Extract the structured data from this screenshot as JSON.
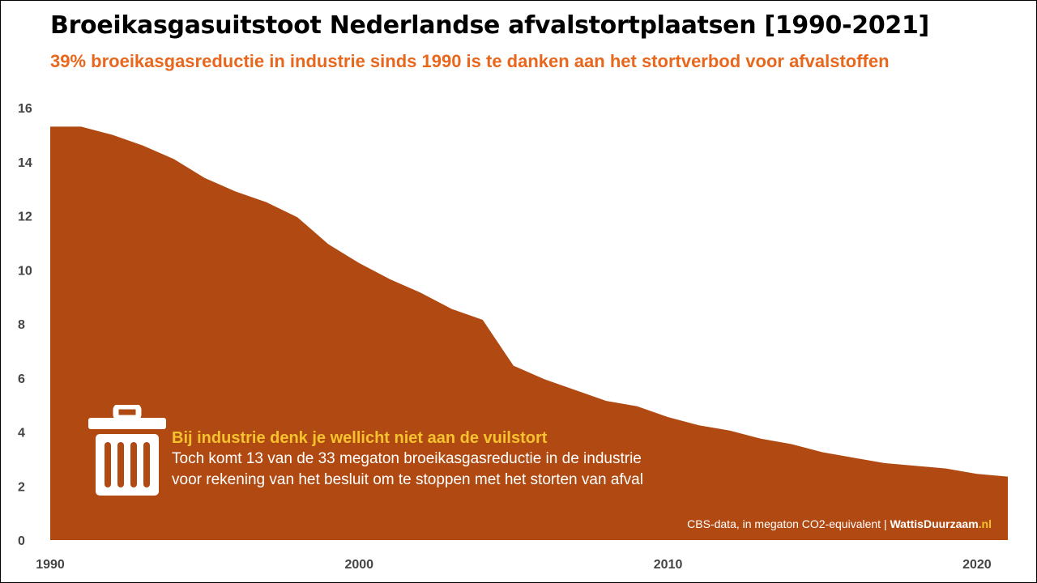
{
  "title": "Broeikasgasuitstoot Nederlandse afvalstortplaatsen [1990-2021]",
  "subtitle": "39% broeikasgasreductie in industrie sinds 1990 is te danken aan het stortverbod voor afvalstoffen",
  "annotation": {
    "heading": "Bij industrie denk je wellicht niet aan de vuilstort",
    "line1": "Toch komt 13 van de 33 megaton broeikasgasreductie in de industrie",
    "line2": "voor rekening van het besluit om te stoppen met het storten van afval",
    "icon": "trash-can-icon"
  },
  "source": {
    "text": "CBS-data, in megaton CO2-equivalent |",
    "brand_main": "WattisDuurzaam",
    "brand_suffix": ".nl"
  },
  "colors": {
    "area": "#b14a12",
    "subtitle": "#e8671d",
    "highlight": "#f6c22e"
  },
  "chart_data": {
    "type": "area",
    "title": "Broeikasgasuitstoot Nederlandse afvalstortplaatsen [1990-2021]",
    "subtitle": "39% broeikasgasreductie in industrie sinds 1990 is te danken aan het stortverbod voor afvalstoffen",
    "xlabel": "",
    "ylabel": "",
    "x": [
      1990,
      1991,
      1992,
      1993,
      1994,
      1995,
      1996,
      1997,
      1998,
      1999,
      2000,
      2001,
      2002,
      2003,
      2004,
      2005,
      2006,
      2007,
      2008,
      2009,
      2010,
      2011,
      2012,
      2013,
      2014,
      2015,
      2016,
      2017,
      2018,
      2019,
      2020,
      2021
    ],
    "values": [
      15.3,
      15.3,
      15.0,
      14.6,
      14.1,
      13.4,
      12.9,
      12.5,
      11.95,
      10.95,
      10.25,
      9.65,
      9.15,
      8.55,
      8.15,
      6.45,
      5.95,
      5.55,
      5.15,
      4.95,
      4.55,
      4.25,
      4.05,
      3.75,
      3.55,
      3.25,
      3.05,
      2.85,
      2.75,
      2.65,
      2.45,
      2.35
    ],
    "xlim": [
      1990,
      2021
    ],
    "ylim": [
      0,
      16
    ],
    "xticks": [
      1990,
      2000,
      2010,
      2020
    ],
    "yticks": [
      0,
      2,
      4,
      6,
      8,
      10,
      12,
      14,
      16
    ],
    "grid": false,
    "legend": "none"
  }
}
